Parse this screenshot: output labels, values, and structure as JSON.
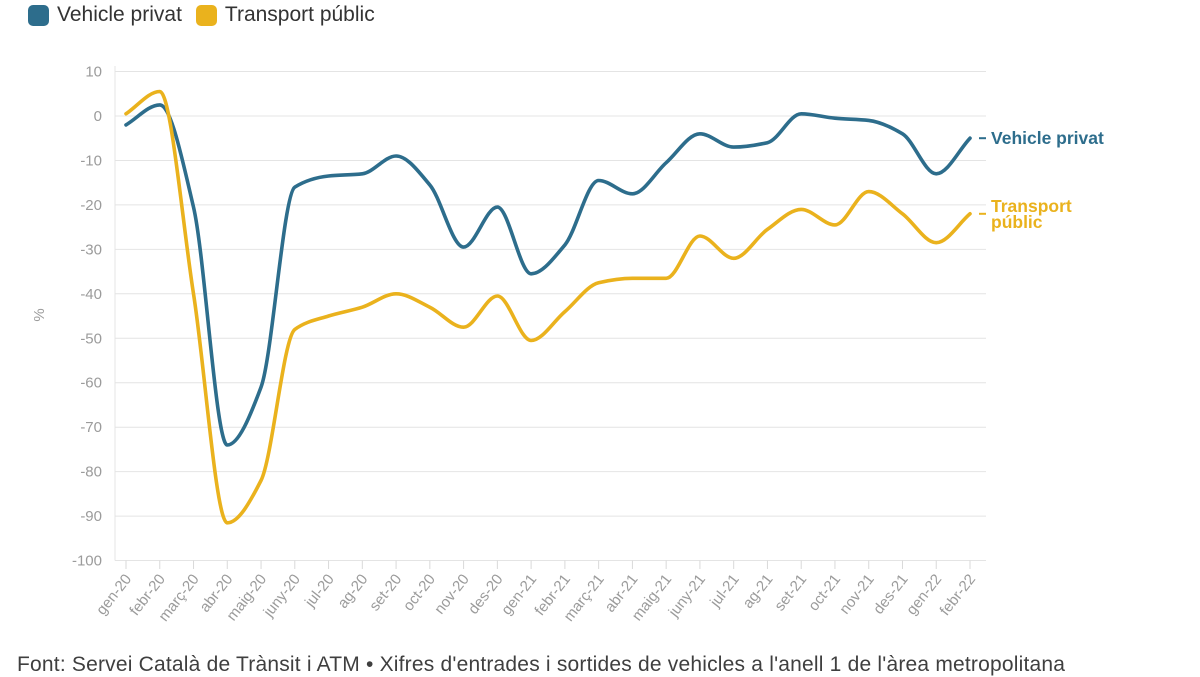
{
  "legend": [
    {
      "label": "Vehicle privat",
      "color": "#2d6d8c"
    },
    {
      "label": "Transport públic",
      "color": "#eab21d"
    }
  ],
  "footer": "Font: Servei Català de Trànsit i ATM • Xifres d'entrades i sortides de vehicles a l'anell 1 de l'àrea metropolitana",
  "colors": {
    "grid": "#e4e4e4",
    "axis_tick": "#d9d9d9",
    "tick_label": "#9b9b9b",
    "blue": "#2d6d8c",
    "yellow": "#eab21d"
  },
  "chart_data": {
    "type": "line",
    "ylabel": "%",
    "ylim": [
      -100,
      10
    ],
    "yticks": [
      10,
      0,
      -10,
      -20,
      -30,
      -40,
      -50,
      -60,
      -70,
      -80,
      -90,
      -100
    ],
    "grid": "horizontal",
    "legend_position": "top-left",
    "categories": [
      "gen-20",
      "febr-20",
      "març-20",
      "abr-20",
      "maig-20",
      "juny-20",
      "jul-20",
      "ag-20",
      "set-20",
      "oct-20",
      "nov-20",
      "des-20",
      "gen-21",
      "febr-21",
      "març-21",
      "abr-21",
      "maig-21",
      "juny-21",
      "jul-21",
      "ag-21",
      "set-21",
      "oct-21",
      "nov-21",
      "des-21",
      "gen-22",
      "febr-22"
    ],
    "series": [
      {
        "name": "Vehicle privat",
        "color": "#2d6d8c",
        "end_label_lines": [
          "Vehicle privat"
        ],
        "values": [
          -2,
          2.5,
          -20.5,
          -74,
          -61,
          -16,
          -13.5,
          -13,
          -9,
          -15.5,
          -29.5,
          -20.5,
          -35.5,
          -29,
          -14.5,
          -17.5,
          -10.5,
          -4,
          -7,
          -6,
          0.5,
          -0.5,
          -1,
          -4,
          -13,
          -5
        ]
      },
      {
        "name": "Transport públic",
        "color": "#eab21d",
        "end_label_lines": [
          "Transport",
          "públic"
        ],
        "values": [
          0.5,
          5.5,
          -40,
          -91.5,
          -82,
          -48,
          -45,
          -43,
          -40,
          -43,
          -47.5,
          -40.5,
          -50.5,
          -44,
          -37.5,
          -36.5,
          -36.5,
          -27,
          -32,
          -25.5,
          -21,
          -24.5,
          -17,
          -22,
          -28.5,
          -22
        ]
      }
    ]
  }
}
